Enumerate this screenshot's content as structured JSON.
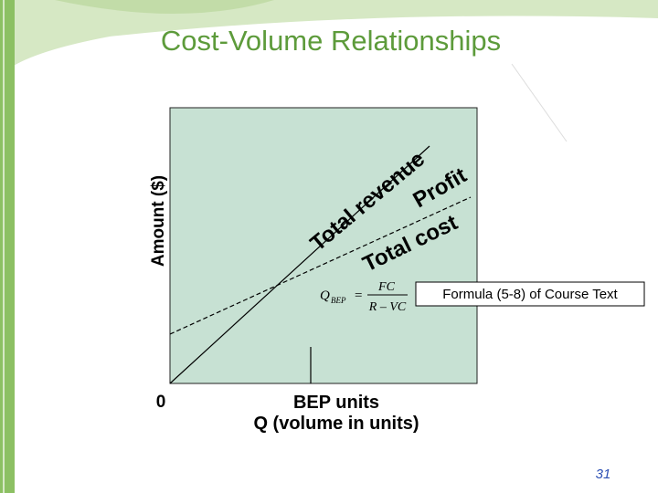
{
  "header": {
    "title": "Cost-Volume Relationships"
  },
  "diagram": {
    "y_axis_label": "Amount ($)",
    "origin_label": "0",
    "bep_label": "BEP units",
    "x_axis_label": "Q (volume in units)",
    "lines": [
      {
        "label": "Total revenue"
      },
      {
        "label": "Total cost"
      }
    ],
    "region_label": "Profit",
    "formula": {
      "lhs": "Q",
      "lhs_sub": "BEP",
      "equals": "=",
      "numerator": "FC",
      "denominator": "R – VC"
    },
    "formula_note": "Formula (5-8) of Course Text"
  },
  "footer": {
    "page_number": "31"
  }
}
